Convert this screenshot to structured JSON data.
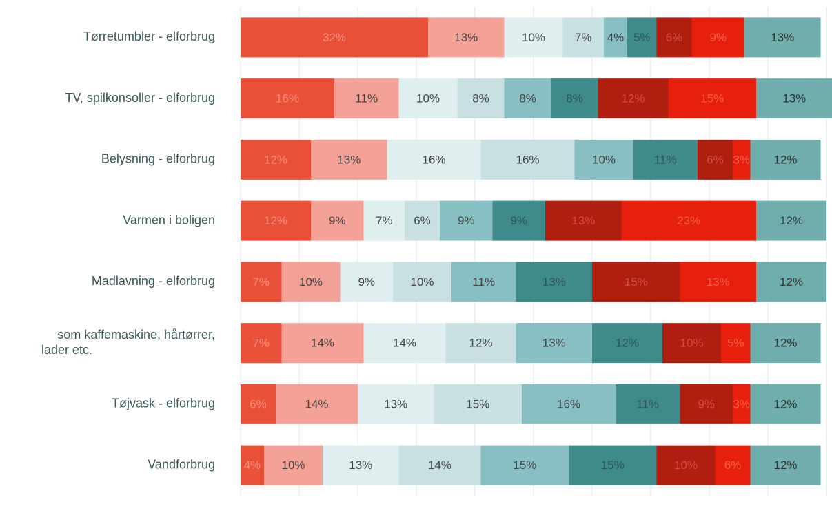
{
  "chart_data": {
    "type": "stacked_barh",
    "categories": [
      "Tørretumbler - elforbrug",
      "TV, spilkonsoller - elforbrug",
      "Belysning - elforbrug",
      "Varmen i boligen",
      "Madlavning - elforbrug",
      "som kaffemaskine, hårtørrer,\nlader etc.",
      "Tøjvask - elforbrug",
      "Vandforbrug"
    ],
    "xlim": [
      0,
      100
    ],
    "xticks": [
      0,
      10,
      20,
      30,
      40,
      50,
      60,
      70,
      80,
      90,
      100
    ],
    "grid": true,
    "series": [
      {
        "color": "#ea5038",
        "label_color": "#f39080",
        "values": [
          32,
          16,
          12,
          12,
          7,
          7,
          6,
          4
        ],
        "value_labels": [
          "32%",
          "16%",
          "12%",
          "12%",
          "7%",
          "7%",
          "6%",
          "4%"
        ]
      },
      {
        "color": "#f4a298",
        "label_color": "#444444",
        "values": [
          13,
          11,
          13,
          9,
          10,
          14,
          14,
          10
        ],
        "value_labels": [
          "13%",
          "11%",
          "13%",
          "9%",
          "10%",
          "14%",
          "14%",
          "10%"
        ]
      },
      {
        "color": "#dfeeee",
        "label_color": "#444444",
        "values": [
          10,
          10,
          16,
          7,
          9,
          14,
          13,
          13
        ],
        "value_labels": [
          "10%",
          "10%",
          "16%",
          "7%",
          "9%",
          "14%",
          "13%",
          "13%"
        ]
      },
      {
        "color": "#c8e0e2",
        "label_color": "#444444",
        "values": [
          7,
          8,
          16,
          6,
          10,
          12,
          15,
          14
        ],
        "value_labels": [
          "7%",
          "8%",
          "16%",
          "6%",
          "10%",
          "12%",
          "15%",
          "14%"
        ]
      },
      {
        "color": "#88bfc3",
        "label_color": "#444444",
        "values": [
          4,
          8,
          10,
          9,
          11,
          13,
          16,
          15
        ],
        "value_labels": [
          "4%",
          "8%",
          "10%",
          "9%",
          "11%",
          "13%",
          "16%",
          "15%"
        ]
      },
      {
        "color": "#3f8a8b",
        "label_color": "#2f5656",
        "values": [
          5,
          8,
          11,
          9,
          13,
          12,
          11,
          15
        ],
        "value_labels": [
          "5%",
          "8%",
          "11%",
          "9%",
          "13%",
          "12%",
          "11%",
          "15%"
        ]
      },
      {
        "color": "#b01e10",
        "label_color": "#d0503e",
        "values": [
          6,
          12,
          6,
          13,
          15,
          10,
          9,
          10
        ],
        "value_labels": [
          "6%",
          "12%",
          "6%",
          "13%",
          "15%",
          "10%",
          "9%",
          "10%"
        ]
      },
      {
        "color": "#e6200c",
        "label_color": "#f2604c",
        "values": [
          9,
          15,
          3,
          23,
          13,
          5,
          3,
          6
        ],
        "value_labels": [
          "9%",
          "15%",
          "3%",
          "23%",
          "13%",
          "5%",
          "3%",
          "6%"
        ]
      },
      {
        "color": "#70adad",
        "label_color": "#333333",
        "values": [
          13,
          13,
          12,
          12,
          12,
          12,
          12,
          12
        ],
        "value_labels": [
          "13%",
          "13%",
          "12%",
          "12%",
          "12%",
          "12%",
          "12%",
          "12%"
        ]
      }
    ]
  }
}
